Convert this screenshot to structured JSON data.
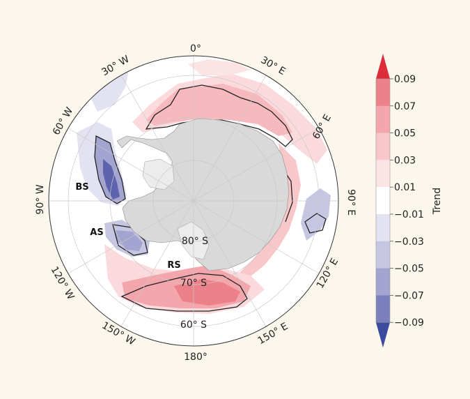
{
  "map": {
    "lon_labels": {
      "l0": "0°",
      "l30e": "30° E",
      "l60e": "60° E",
      "l90e": "90° E",
      "l120e": "120° E",
      "l150e": "150° E",
      "l180": "180°",
      "l150w": "150° W",
      "l120w": "120° W",
      "l90w": "90° W",
      "l60w": "60° W",
      "l30w": "30° W"
    },
    "lat_labels": {
      "s60": "60° S",
      "s70": "70° S",
      "s80": "80° S"
    },
    "regions": {
      "bs": "BS",
      "as": "AS",
      "rs": "RS"
    }
  },
  "colorbar": {
    "title": "Trend",
    "ticks": [
      "0.09",
      "0.07",
      "0.05",
      "0.03",
      "0.01",
      "−0.01",
      "−0.03",
      "−0.05",
      "−0.07",
      "−0.09"
    ],
    "colors": [
      "#de2d3a",
      "#ec8189",
      "#f3a6ab",
      "#f8c7ca",
      "#fce4e5",
      "#ffffff",
      "#e3e2f1",
      "#c7c6e2",
      "#a4a4d0",
      "#7b7fbc",
      "#3b4b9e"
    ]
  }
}
